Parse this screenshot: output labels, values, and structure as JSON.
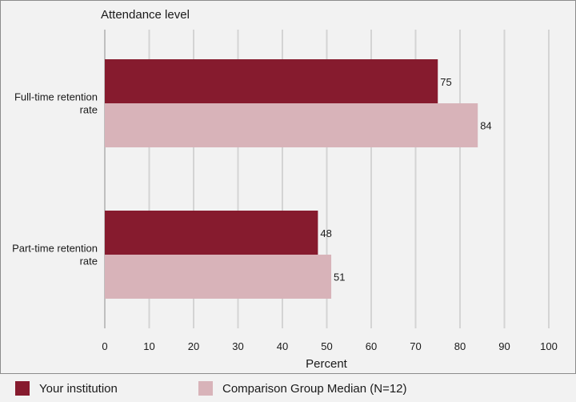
{
  "chart_data": {
    "type": "bar",
    "orientation": "horizontal",
    "title": "Attendance level",
    "xlabel": "Percent",
    "ylabel": "",
    "categories": [
      "Full-time retention rate",
      "Part-time retention rate"
    ],
    "category_lines": [
      [
        "Full-time retention",
        "rate"
      ],
      [
        "Part-time retention",
        "rate"
      ]
    ],
    "series": [
      {
        "name": "Your institution",
        "values": [
          75,
          48
        ],
        "color": "#861b2e"
      },
      {
        "name": "Comparison Group Median (N=12)",
        "values": [
          84,
          51
        ],
        "color": "#d8b3b9"
      }
    ],
    "xlim": [
      0,
      100
    ],
    "xticks": [
      0,
      10,
      20,
      30,
      40,
      50,
      60,
      70,
      80,
      90,
      100
    ],
    "grid": true,
    "legend_position": "bottom"
  }
}
